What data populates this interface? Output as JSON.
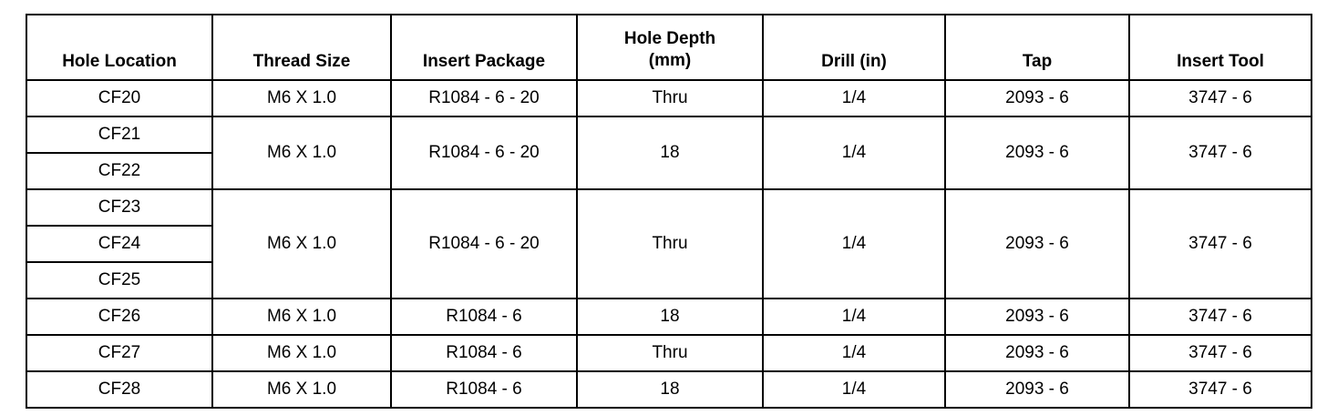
{
  "table": {
    "header": [
      "Hole Location",
      "Thread Size",
      "Insert Package",
      "Hole Depth (mm)",
      "Drill (in)",
      "Tap",
      "Insert Tool"
    ],
    "rows": [
      [
        [
          "CF20"
        ],
        "M6 X 1.0",
        "R1084 - 6 - 20",
        "Thru",
        "1/4",
        "2093 - 6",
        "3747 - 6"
      ],
      [
        [
          "CF21",
          "CF22"
        ],
        "M6 X 1.0",
        "R1084 - 6 - 20",
        "18",
        "1/4",
        "2093 - 6",
        "3747 - 6"
      ],
      [
        [
          "CF23",
          "CF24",
          "CF25"
        ],
        "M6 X 1.0",
        "R1084 - 6 - 20",
        "Thru",
        "1/4",
        "2093 - 6",
        "3747 - 6"
      ],
      [
        [
          "CF26"
        ],
        "M6 X 1.0",
        "R1084 - 6",
        "18",
        "1/4",
        "2093 - 6",
        "3747 - 6"
      ],
      [
        [
          "CF27"
        ],
        "M6 X 1.0",
        "R1084 - 6",
        "Thru",
        "1/4",
        "2093 - 6",
        "3747 - 6"
      ],
      [
        [
          "CF28"
        ],
        "M6 X 1.0",
        "R1084 - 6",
        "18",
        "1/4",
        "2093 - 6",
        "3747 - 6"
      ]
    ]
  }
}
